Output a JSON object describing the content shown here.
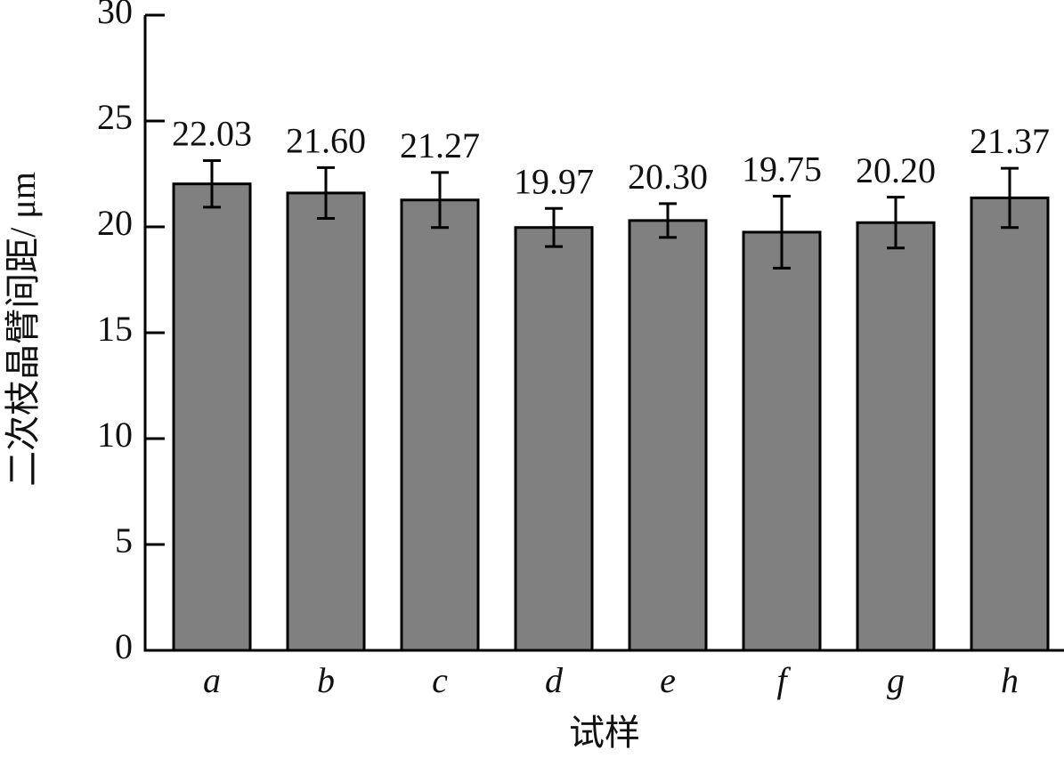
{
  "chart_data": {
    "type": "bar",
    "x_label": "试样",
    "y_label": "二次枝晶臂间距/ μm",
    "categories": [
      "a",
      "b",
      "c",
      "d",
      "e",
      "f",
      "g",
      "h"
    ],
    "values": [
      22.03,
      21.6,
      21.27,
      19.97,
      20.3,
      19.75,
      20.2,
      21.37
    ],
    "value_labels": [
      "22.03",
      "21.60",
      "21.27",
      "19.97",
      "20.30",
      "19.75",
      "20.20",
      "21.37"
    ],
    "errors": [
      1.1,
      1.2,
      1.3,
      0.9,
      0.8,
      1.7,
      1.2,
      1.4
    ],
    "color": "#808080",
    "ylim": [
      0,
      30
    ],
    "yticks": [
      0,
      5,
      10,
      15,
      20,
      25,
      30
    ],
    "grid": false
  }
}
